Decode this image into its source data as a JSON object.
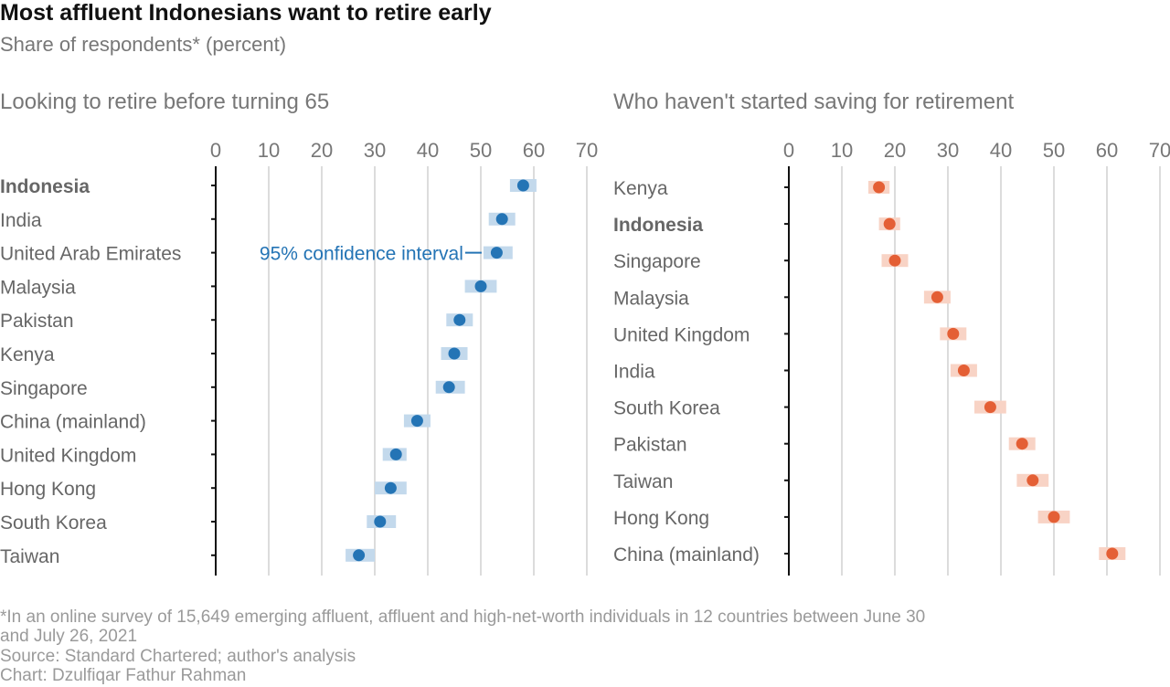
{
  "header": {
    "title": "Most affluent Indonesians want to retire early",
    "subtitle": "Share of respondents* (percent)"
  },
  "footer": {
    "note_line1": "*In an online survey of 15,649 emerging affluent, affluent and high-net-worth individuals in 12 countries between June 30",
    "note_line2": "and July 26, 2021",
    "source": "Source: Standard Chartered; author's analysis",
    "credit": "Chart: Dzulfiqar Fathur Rahman"
  },
  "colors": {
    "left_point": "#2474b5",
    "left_ci": "#c3d9ec",
    "right_point": "#e45f35",
    "right_ci": "#f8d3c5",
    "annotation": "#2474b5",
    "grid": "#dcdcdc",
    "axis_text": "#777777",
    "label_text": "#666666"
  },
  "chart_data": [
    {
      "type": "scatter",
      "subtype": "dot plot with confidence intervals",
      "title": "Looking to retire before turning 65",
      "xlim": [
        0,
        70
      ],
      "xticks": [
        0,
        10,
        20,
        30,
        40,
        50,
        60,
        70
      ],
      "grid": true,
      "highlight": "Indonesia",
      "annotation": {
        "text": "95% confidence interval",
        "target": "United Arab Emirates"
      },
      "categories": [
        "Indonesia",
        "India",
        "United Arab Emirates",
        "Malaysia",
        "Pakistan",
        "Kenya",
        "Singapore",
        "China (mainland)",
        "United Kingdom",
        "Hong Kong",
        "South Korea",
        "Taiwan"
      ],
      "values": [
        58,
        54,
        53,
        50,
        46,
        45,
        44,
        38,
        34,
        33,
        31,
        27
      ],
      "ci_low": [
        55.5,
        51.5,
        50.5,
        47,
        43.5,
        42.5,
        41.5,
        35.5,
        31.5,
        30,
        28.5,
        24.5
      ],
      "ci_high": [
        60.5,
        56.5,
        56,
        53,
        48.5,
        47.5,
        47,
        40.5,
        36,
        36,
        34,
        30
      ]
    },
    {
      "type": "scatter",
      "subtype": "dot plot with confidence intervals",
      "title": "Who haven't started saving for retirement",
      "xlim": [
        0,
        70
      ],
      "xticks": [
        0,
        10,
        20,
        30,
        40,
        50,
        60,
        70
      ],
      "grid": true,
      "highlight": "Indonesia",
      "categories": [
        "Kenya",
        "Indonesia",
        "Singapore",
        "Malaysia",
        "United Kingdom",
        "India",
        "South Korea",
        "Pakistan",
        "Taiwan",
        "Hong Kong",
        "China (mainland)"
      ],
      "values": [
        17,
        19,
        20,
        28,
        31,
        33,
        38,
        44,
        46,
        50,
        61
      ],
      "ci_low": [
        15,
        17,
        17.5,
        25.5,
        28.5,
        30.5,
        35,
        41.5,
        43,
        47,
        58.5
      ],
      "ci_high": [
        19,
        21,
        22.5,
        30.5,
        33.5,
        35.5,
        41,
        46.5,
        49,
        53,
        63.5
      ]
    }
  ]
}
